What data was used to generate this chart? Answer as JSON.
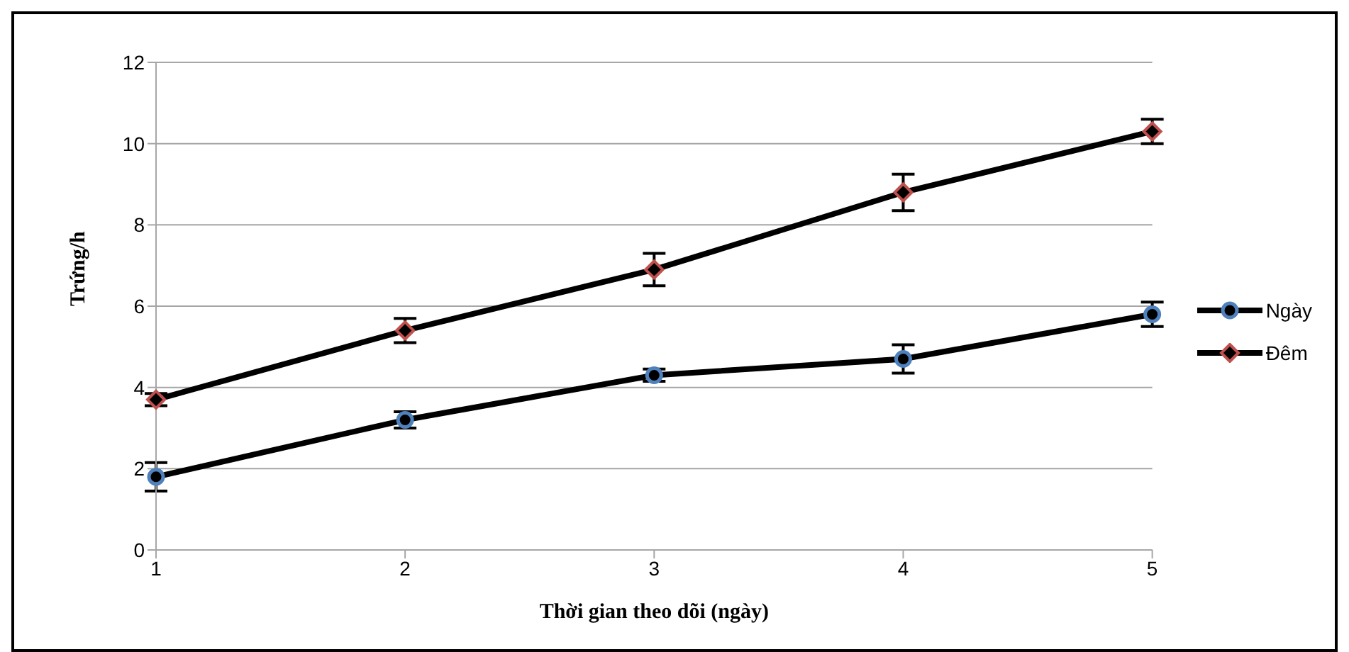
{
  "chart_data": {
    "type": "line",
    "xlabel": "Thời gian theo dõi (ngày)",
    "ylabel": "Trứng/h",
    "categories": [
      "1",
      "2",
      "3",
      "4",
      "5"
    ],
    "series": [
      {
        "name": "Ngày",
        "color": "#4f81bd",
        "marker": "circle",
        "values": [
          1.8,
          3.2,
          4.3,
          4.7,
          5.8
        ],
        "errors": [
          0.35,
          0.2,
          0.15,
          0.35,
          0.3
        ]
      },
      {
        "name": "Đêm",
        "color": "#c0504d",
        "marker": "diamond",
        "values": [
          3.7,
          5.4,
          6.9,
          8.8,
          10.3
        ],
        "errors": [
          0.15,
          0.3,
          0.4,
          0.45,
          0.3
        ]
      }
    ],
    "ylim": [
      0,
      12
    ],
    "yticks": [
      0,
      2,
      4,
      6,
      8,
      10,
      12
    ],
    "grid": "y",
    "legend": "right",
    "line_style": "solid"
  }
}
